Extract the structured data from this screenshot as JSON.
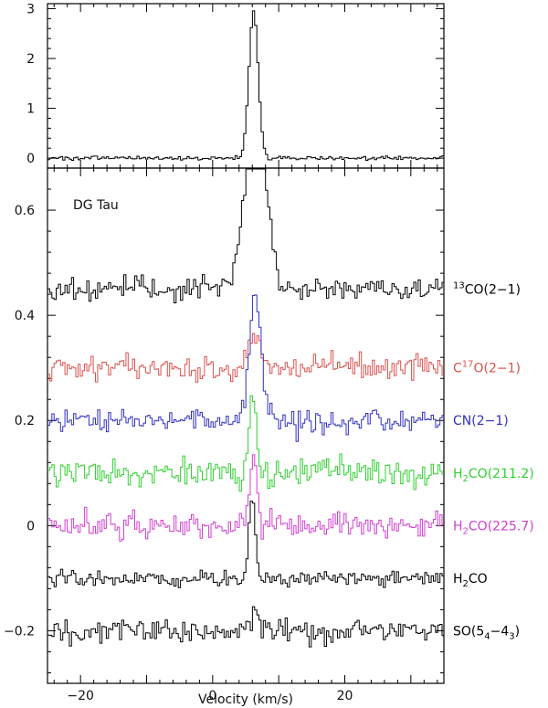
{
  "chart_data": [
    {
      "panel": "top",
      "type": "line",
      "xlim": [
        -25,
        35
      ],
      "ylim": [
        -0.2,
        3.1
      ],
      "y_ticks": [
        0,
        1,
        2,
        3
      ],
      "y_tick_labels": [
        "0",
        "1",
        "2",
        "3"
      ],
      "series": [
        {
          "color": "#000000",
          "baseline": 0,
          "noise": 0.02,
          "peak_center": 6.2,
          "peak_sigma": 0.7,
          "peak_height": 2.95
        }
      ]
    },
    {
      "panel": "bottom",
      "type": "line",
      "title": "DG Tau",
      "xlabel": "Velocity (km/s)",
      "xlim": [
        -25,
        35
      ],
      "ylim": [
        -0.3,
        0.68
      ],
      "x_ticks": [
        -20,
        0,
        20
      ],
      "x_tick_labels": [
        "−20",
        "0",
        "20"
      ],
      "y_ticks": [
        -0.2,
        0,
        0.2,
        0.4,
        0.6
      ],
      "y_tick_labels": [
        "−0.2",
        "0",
        "0.2",
        "0.4",
        "0.6"
      ],
      "series": [
        {
          "label_pre": "",
          "label_sup": "13",
          "label_sub": "",
          "label_post": "CO(2−1)",
          "color": "#000000",
          "baseline": 0.45,
          "noise": 0.012,
          "peak_center": 6.5,
          "peak_sigma": 1.6,
          "peak_height": 0.32
        },
        {
          "label_pre": "C",
          "label_sup": "17",
          "label_sub": "",
          "label_post": "O(2−1)",
          "color": "#d9534f",
          "baseline": 0.3,
          "noise": 0.012,
          "peak_center": 6.0,
          "peak_sigma": 0.9,
          "peak_height": 0.06
        },
        {
          "label_pre": "CN(2−1)",
          "label_sup": "",
          "label_sub": "",
          "label_post": "",
          "color": "#3030c0",
          "baseline": 0.2,
          "noise": 0.012,
          "peak_center": 6.5,
          "peak_sigma": 0.9,
          "peak_height": 0.24
        },
        {
          "label_pre": "H",
          "label_sup": "",
          "label_sub": "2",
          "label_post": "CO(211.2)",
          "color": "#30d030",
          "baseline": 0.1,
          "noise": 0.013,
          "peak_center": 6.0,
          "peak_sigma": 0.5,
          "peak_height": 0.16
        },
        {
          "label_pre": "H",
          "label_sup": "",
          "label_sub": "2",
          "label_post": "CO(225.7)",
          "color": "#d040d0",
          "baseline": 0.0,
          "noise": 0.013,
          "peak_center": 6.2,
          "peak_sigma": 0.5,
          "peak_height": 0.14
        },
        {
          "label_pre": "H",
          "label_sup": "",
          "label_sub": "2",
          "label_post": "CO",
          "color": "#000000",
          "baseline": -0.1,
          "noise": 0.007,
          "peak_center": 6.0,
          "peak_sigma": 0.5,
          "peak_height": 0.15
        },
        {
          "label_pre": "SO(5",
          "label_sup": "",
          "label_sub": "4",
          "label_post": "−4",
          "label_sub2": "3",
          "label_post2": ")",
          "color": "#000000",
          "baseline": -0.2,
          "noise": 0.012,
          "peak_center": 6.3,
          "peak_sigma": 0.6,
          "peak_height": 0.03
        }
      ]
    }
  ]
}
